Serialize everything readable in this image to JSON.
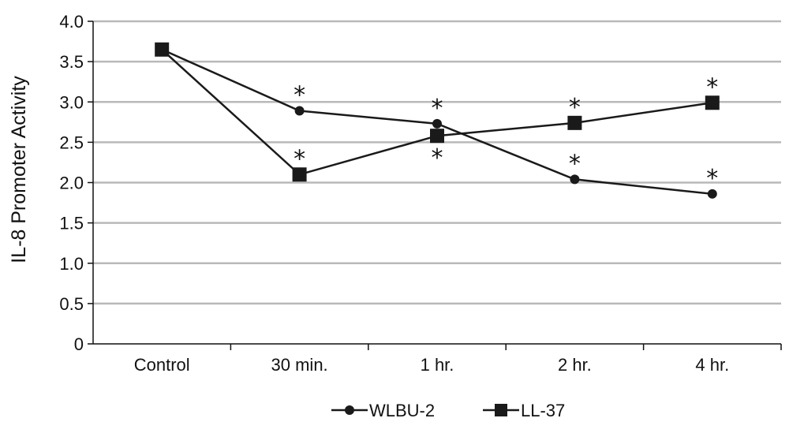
{
  "chart_data": {
    "type": "line",
    "title": "",
    "xlabel": "",
    "ylabel": "IL-8 Promoter Activity",
    "ylim": [
      0,
      4.0
    ],
    "yticks": [
      "0",
      "0.5",
      "1.0",
      "1.5",
      "2.0",
      "2.5",
      "3.0",
      "3.5",
      "4.0"
    ],
    "grid": "horizontal",
    "legend_position": "bottom-center",
    "categories": [
      "Control",
      "30 min.",
      "1 hr.",
      "2 hr.",
      "4 hr."
    ],
    "series": [
      {
        "name": "WLBU-2",
        "marker": "circle",
        "color": "#1a1a1a",
        "values": [
          3.65,
          2.89,
          2.73,
          2.04,
          1.86
        ],
        "significance": [
          "",
          "*",
          "*",
          "*",
          "*"
        ]
      },
      {
        "name": "LL-37",
        "marker": "square",
        "color": "#1a1a1a",
        "values": [
          3.65,
          2.1,
          2.58,
          2.74,
          2.99
        ],
        "significance": [
          "",
          "*",
          "*",
          "*",
          "*"
        ]
      }
    ]
  }
}
